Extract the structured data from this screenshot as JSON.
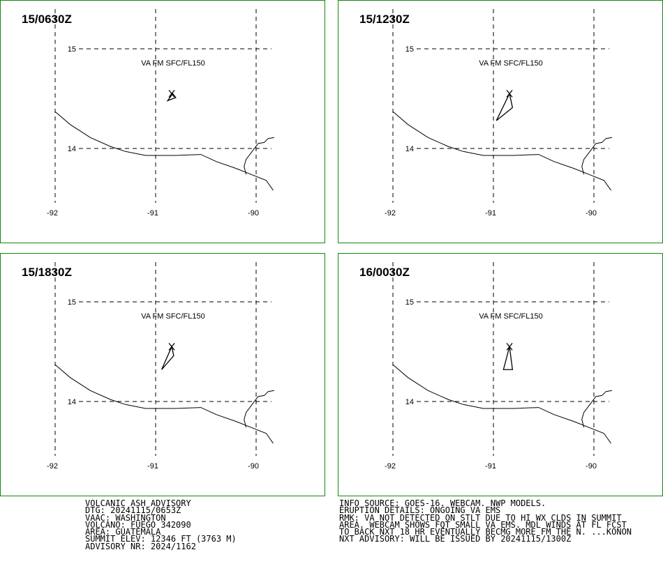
{
  "panels": [
    {
      "time": "15/0630Z",
      "label": "VA FM SFC/FL150",
      "plume": [
        [
          -90.88,
          14.48
        ],
        [
          -90.8,
          14.51
        ],
        [
          -90.83,
          14.55
        ]
      ]
    },
    {
      "time": "15/1230Z",
      "label": "VA FM SFC/FL150",
      "plume": [
        [
          -90.97,
          14.28
        ],
        [
          -90.81,
          14.41
        ],
        [
          -90.84,
          14.55
        ]
      ]
    },
    {
      "time": "15/1830Z",
      "label": "VA FM SFC/FL150",
      "plume": [
        [
          -90.94,
          14.32
        ],
        [
          -90.82,
          14.46
        ],
        [
          -90.84,
          14.55
        ]
      ]
    },
    {
      "time": "16/0030Z",
      "label": "VA FM SFC/FL150",
      "plume": [
        [
          -90.9,
          14.32
        ],
        [
          -90.81,
          14.32
        ],
        [
          -90.84,
          14.55
        ]
      ]
    }
  ],
  "map": {
    "lat_labels": [
      "15",
      "14"
    ],
    "lon_labels": [
      "-92",
      "-91",
      "-90"
    ],
    "volcano": {
      "lon": -90.84,
      "lat": 14.55
    }
  },
  "advisory_left": [
    "VOLCANIC ASH ADVISORY",
    "DTG: 20241115/0653Z",
    "VAAC: WASHINGTON",
    "VOLCANO: FUEGO 342090",
    "AREA: GUATEMALA",
    "SUMMIT ELEV: 12346 FT (3763 M)",
    "ADVISORY NR: 2024/1162"
  ],
  "advisory_right": [
    "INFO SOURCE: GOES-16. WEBCAM. NWP MODELS.",
    "ERUPTION DETAILS: ONGOING VA EMS",
    "RMK: VA NOT DETECTED ON STLT DUE TO HI WX CLDS IN SUMMIT",
    "AREA. WEBCAM SHOWS FQT SMALL VA EMS. MDL WINDS AT FL FCST",
    "TO BACK NXT 18 HR EVENTUALLY BECMG MORE FM THE N. ...KONON",
    "NXT ADVISORY: WILL BE ISSUED BY 20241115/1300Z"
  ]
}
